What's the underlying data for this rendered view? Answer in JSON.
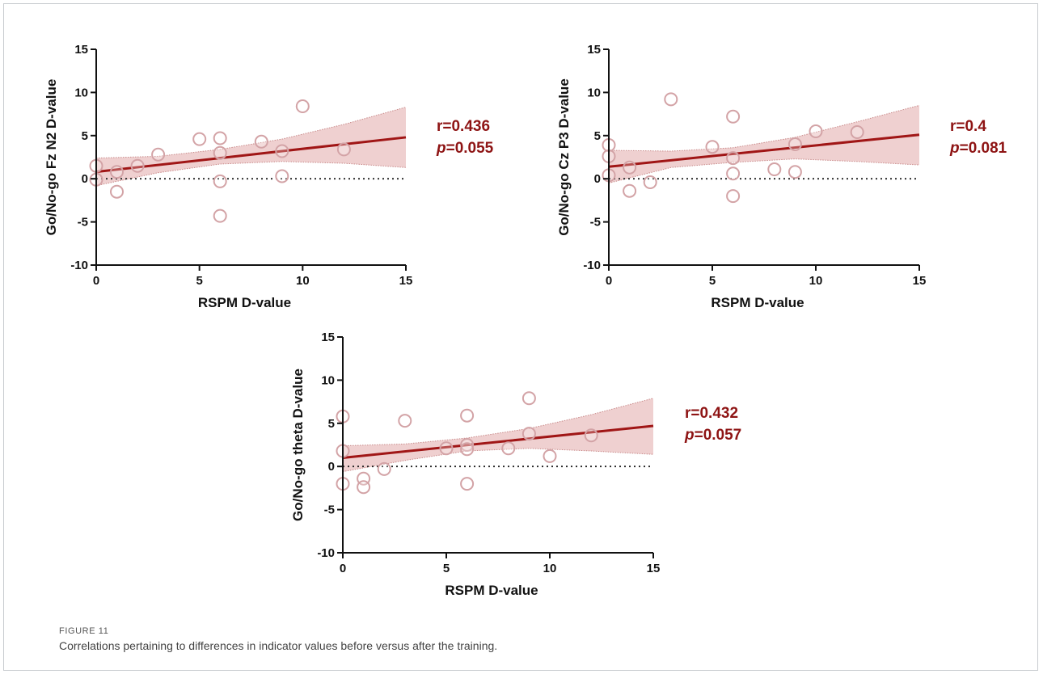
{
  "caption": {
    "label": "FIGURE 11",
    "text": "Correlations pertaining to differences in indicator values before versus after the training."
  },
  "colors": {
    "regression_line": "#a01616",
    "confidence_band": "#e9c0c0",
    "band_edge": "#c98a8a",
    "marker_edge": "#d3a3a6",
    "stat_text": "#8e1414",
    "axis": "#111111"
  },
  "chart_data": [
    {
      "type": "scatter",
      "xlabel": "RSPM D-value",
      "ylabel": "Go/No-go Fz N2 D-value",
      "xlim": [
        0,
        15
      ],
      "ylim": [
        -10,
        15
      ],
      "xticks": [
        0,
        5,
        10,
        15
      ],
      "yticks": [
        -10,
        -5,
        0,
        5,
        10,
        15
      ],
      "points": [
        {
          "x": 0,
          "y": 1.5
        },
        {
          "x": 0,
          "y": -0.1
        },
        {
          "x": 1,
          "y": 0.8
        },
        {
          "x": 1,
          "y": -1.5
        },
        {
          "x": 2,
          "y": 1.5
        },
        {
          "x": 3,
          "y": 2.8
        },
        {
          "x": 5,
          "y": 4.6
        },
        {
          "x": 6,
          "y": 4.7
        },
        {
          "x": 6,
          "y": 3.0
        },
        {
          "x": 6,
          "y": -0.3
        },
        {
          "x": 6,
          "y": -4.3
        },
        {
          "x": 8,
          "y": 4.3
        },
        {
          "x": 9,
          "y": 3.2
        },
        {
          "x": 9,
          "y": 0.3
        },
        {
          "x": 10,
          "y": 8.4
        },
        {
          "x": 12,
          "y": 3.4
        }
      ],
      "fit": {
        "x": [
          0,
          15
        ],
        "y": [
          0.8,
          4.8
        ]
      },
      "band": {
        "x": [
          0,
          3,
          6,
          9,
          12,
          15
        ],
        "upper": [
          2.4,
          2.6,
          3.4,
          4.6,
          6.3,
          8.3
        ],
        "lower": [
          -0.8,
          0.7,
          1.7,
          2.0,
          1.8,
          1.3
        ]
      },
      "grid": false,
      "annotation": {
        "r": "r=0.436",
        "p_symbol": "p",
        "p_value": "=0.055"
      }
    },
    {
      "type": "scatter",
      "xlabel": "RSPM D-value",
      "ylabel": "Go/No-go Cz P3 D-value",
      "xlim": [
        0,
        15
      ],
      "ylim": [
        -10,
        15
      ],
      "xticks": [
        0,
        5,
        10,
        15
      ],
      "yticks": [
        -10,
        -5,
        0,
        5,
        10,
        15
      ],
      "points": [
        {
          "x": 0,
          "y": 3.9
        },
        {
          "x": 0,
          "y": 2.6
        },
        {
          "x": 0,
          "y": 0.4
        },
        {
          "x": 1,
          "y": 1.3
        },
        {
          "x": 1,
          "y": -1.4
        },
        {
          "x": 2,
          "y": -0.4
        },
        {
          "x": 3,
          "y": 9.2
        },
        {
          "x": 5,
          "y": 3.7
        },
        {
          "x": 6,
          "y": 7.2
        },
        {
          "x": 6,
          "y": 2.4
        },
        {
          "x": 6,
          "y": 0.6
        },
        {
          "x": 6,
          "y": -2.0
        },
        {
          "x": 8,
          "y": 1.1
        },
        {
          "x": 9,
          "y": 4.0
        },
        {
          "x": 9,
          "y": 0.8
        },
        {
          "x": 10,
          "y": 5.5
        },
        {
          "x": 12,
          "y": 5.4
        }
      ],
      "fit": {
        "x": [
          0,
          15
        ],
        "y": [
          1.4,
          5.1
        ]
      },
      "band": {
        "x": [
          0,
          3,
          6,
          9,
          12,
          15
        ],
        "upper": [
          3.3,
          3.2,
          3.6,
          4.8,
          6.6,
          8.5
        ],
        "lower": [
          -0.5,
          1.3,
          1.9,
          2.3,
          2.0,
          1.6
        ]
      },
      "grid": false,
      "annotation": {
        "r": "r=0.4",
        "p_symbol": "p",
        "p_value": "=0.081"
      }
    },
    {
      "type": "scatter",
      "xlabel": "RSPM D-value",
      "ylabel": "Go/No-go theta D-value",
      "xlim": [
        0,
        15
      ],
      "ylim": [
        -10,
        15
      ],
      "xticks": [
        0,
        5,
        10,
        15
      ],
      "yticks": [
        -10,
        -5,
        0,
        5,
        10,
        15
      ],
      "points": [
        {
          "x": 0,
          "y": 5.8
        },
        {
          "x": 0,
          "y": 1.8
        },
        {
          "x": 0,
          "y": -2.0
        },
        {
          "x": 1,
          "y": -1.4
        },
        {
          "x": 1,
          "y": -2.4
        },
        {
          "x": 2,
          "y": -0.3
        },
        {
          "x": 3,
          "y": 5.3
        },
        {
          "x": 5,
          "y": 2.1
        },
        {
          "x": 6,
          "y": 5.9
        },
        {
          "x": 6,
          "y": 2.5
        },
        {
          "x": 6,
          "y": 2.0
        },
        {
          "x": 6,
          "y": -2.0
        },
        {
          "x": 8,
          "y": 2.1
        },
        {
          "x": 9,
          "y": 7.9
        },
        {
          "x": 9,
          "y": 3.8
        },
        {
          "x": 10,
          "y": 1.2
        },
        {
          "x": 12,
          "y": 3.6
        }
      ],
      "fit": {
        "x": [
          0,
          15
        ],
        "y": [
          1.0,
          4.7
        ]
      },
      "band": {
        "x": [
          0,
          3,
          6,
          9,
          12,
          15
        ],
        "upper": [
          2.4,
          2.6,
          3.3,
          4.4,
          6.0,
          7.9
        ],
        "lower": [
          -0.6,
          0.7,
          1.8,
          2.1,
          1.8,
          1.4
        ]
      },
      "grid": false,
      "annotation": {
        "r": "r=0.432",
        "p_symbol": "p",
        "p_value": "=0.057"
      }
    }
  ]
}
